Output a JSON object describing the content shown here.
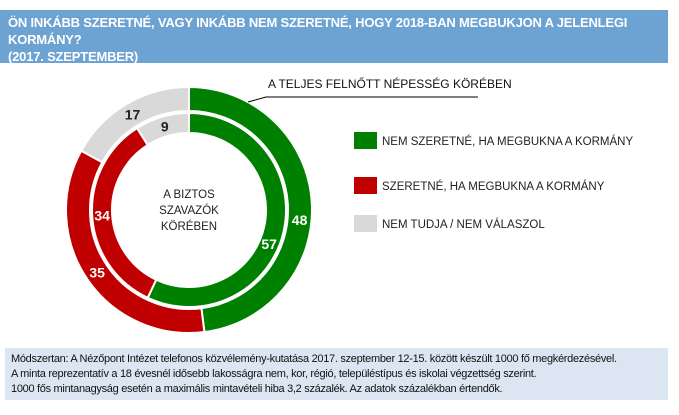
{
  "header": {
    "title_line1": "ÖN INKÁBB SZERETNÉ, VAGY INKÁBB NEM SZERETNÉ, HOGY 2018-BAN MEGBUKJON A JELENLEGI KORMÁNY?",
    "title_line2": "(2017. SZEPTEMBER)"
  },
  "chart_data": {
    "type": "donut",
    "categories": [
      "NEM SZERETNÉ, HA MEGBUKNA A KORMÁNY",
      "SZERETNÉ, HA MEGBUKNA A KORMÁNY",
      "NEM TUDJA / NEM VÁLASZOL"
    ],
    "colors": [
      "#008000",
      "#c00000",
      "#d9d9d9"
    ],
    "series": [
      {
        "name": "A TELJES FELNŐTT NÉPESSÉG KÖRÉBEN",
        "ring": "outer",
        "values": [
          48,
          35,
          17
        ]
      },
      {
        "name": "A BIZTOS SZAVAZÓK KÖRÉBEN",
        "ring": "inner",
        "values": [
          57,
          34,
          9
        ]
      }
    ],
    "legend_position": "right",
    "center_label": [
      "A BIZTOS",
      "SZAVAZÓK",
      "KÖRÉBEN"
    ]
  },
  "footer": {
    "line1": "Módszertan: A Nézőpont Intézet telefonos közvélemény-kutatása 2017. szeptember 12-15. között készült 1000 fő megkérdezésével.",
    "line2": "A minta reprezentatív a 18 évesnél idősebb lakosságra nem, kor, régió, településtípus és iskolai végzettség szerint.",
    "line3": "1000 fős mintanagyság esetén a maximális mintavételi hiba 3,2 százalék. Az adatok százalékban értendők."
  }
}
